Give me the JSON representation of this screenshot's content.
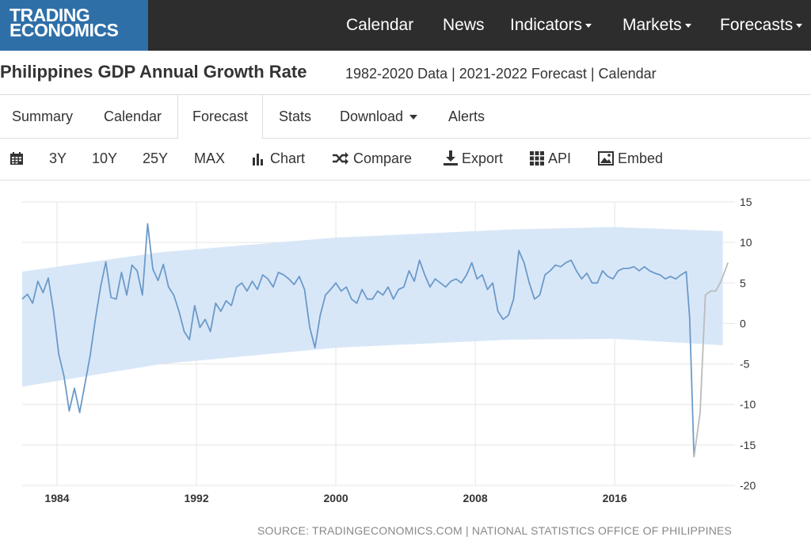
{
  "header": {
    "logo_line1": "TRADING",
    "logo_line2": "ECONOMICS",
    "nav": [
      {
        "label": "Calendar",
        "dropdown": false
      },
      {
        "label": "News",
        "dropdown": false
      },
      {
        "label": "Indicators",
        "dropdown": true
      },
      {
        "label": "Markets",
        "dropdown": true
      },
      {
        "label": "Forecasts",
        "dropdown": true
      }
    ]
  },
  "page": {
    "title": "Philippines GDP Annual Growth Rate",
    "subtitle": "1982-2020 Data | 2021-2022 Forecast | Calendar"
  },
  "tabs": [
    {
      "label": "Summary",
      "active": false,
      "dropdown": false
    },
    {
      "label": "Calendar",
      "active": false,
      "dropdown": false
    },
    {
      "label": "Forecast",
      "active": true,
      "dropdown": false
    },
    {
      "label": "Stats",
      "active": false,
      "dropdown": false
    },
    {
      "label": "Download",
      "active": false,
      "dropdown": true
    },
    {
      "label": "Alerts",
      "active": false,
      "dropdown": false
    }
  ],
  "toolbar": {
    "items": [
      {
        "label": "",
        "icon": "calendar-icon"
      },
      {
        "label": "3Y",
        "icon": ""
      },
      {
        "label": "10Y",
        "icon": ""
      },
      {
        "label": "25Y",
        "icon": ""
      },
      {
        "label": "MAX",
        "icon": ""
      },
      {
        "label": "Chart",
        "icon": "bar-chart-icon"
      },
      {
        "label": "Compare",
        "icon": "shuffle-icon"
      },
      {
        "label": "Export",
        "icon": "download-icon"
      },
      {
        "label": "API",
        "icon": "grid-icon"
      },
      {
        "label": "Embed",
        "icon": "image-icon"
      }
    ]
  },
  "source": "SOURCE: TRADINGECONOMICS.COM | NATIONAL STATISTICS OFFICE OF PHILIPPINES",
  "colors": {
    "nav_bg": "#2d2d2d",
    "logo_bg": "#2f6fa8",
    "line": "#6b9ac9",
    "forecast_line": "#bbbbbb",
    "band": "#d4e4f7"
  },
  "chart_data": {
    "type": "line",
    "x_ticks": [
      "1984",
      "1992",
      "2000",
      "2008",
      "2016"
    ],
    "y_ticks": [
      "15",
      "10",
      "5",
      "0",
      "-5",
      "-10",
      "-15",
      "-20"
    ],
    "ylim": [
      -20,
      15
    ],
    "xlim": [
      1982.0,
      2022.9
    ],
    "grid": true,
    "series": [
      {
        "kind": "actual",
        "x": [
          1982.0,
          1982.3,
          1982.6,
          1982.9,
          1983.2,
          1983.5,
          1983.8,
          1984.1,
          1984.4,
          1984.7,
          1985.0,
          1985.3,
          1985.6,
          1985.9,
          1986.2,
          1986.5,
          1986.8,
          1987.1,
          1987.4,
          1987.7,
          1988.0,
          1988.3,
          1988.6,
          1988.9,
          1989.2,
          1989.5,
          1989.8,
          1990.1,
          1990.4,
          1990.7,
          1991.0,
          1991.3,
          1991.6,
          1991.9,
          1992.2,
          1992.5,
          1992.8,
          1993.1,
          1993.4,
          1993.7,
          1994.0,
          1994.3,
          1994.6,
          1994.9,
          1995.2,
          1995.5,
          1995.8,
          1996.1,
          1996.4,
          1996.7,
          1997.0,
          1997.3,
          1997.6,
          1997.9,
          1998.2,
          1998.5,
          1998.8,
          1999.1,
          1999.4,
          1999.7,
          2000.0,
          2000.3,
          2000.6,
          2000.9,
          2001.2,
          2001.5,
          2001.8,
          2002.1,
          2002.4,
          2002.7,
          2003.0,
          2003.3,
          2003.6,
          2003.9,
          2004.2,
          2004.5,
          2004.8,
          2005.1,
          2005.4,
          2005.7,
          2006.0,
          2006.3,
          2006.6,
          2006.9,
          2007.2,
          2007.5,
          2007.8,
          2008.1,
          2008.4,
          2008.7,
          2009.0,
          2009.3,
          2009.6,
          2009.9,
          2010.2,
          2010.5,
          2010.8,
          2011.1,
          2011.4,
          2011.7,
          2012.0,
          2012.3,
          2012.6,
          2012.9,
          2013.2,
          2013.5,
          2013.8,
          2014.1,
          2014.4,
          2014.7,
          2015.0,
          2015.3,
          2015.6,
          2015.9,
          2016.2,
          2016.5,
          2016.8,
          2017.1,
          2017.4,
          2017.7,
          2018.0,
          2018.3,
          2018.6,
          2018.9,
          2019.2,
          2019.5,
          2019.8,
          2020.1,
          2020.3,
          2020.55
        ],
        "y": [
          3.0,
          3.6,
          2.5,
          5.2,
          3.8,
          5.6,
          1.5,
          -3.8,
          -6.5,
          -10.8,
          -8.0,
          -11.0,
          -7.5,
          -4.0,
          0.5,
          4.5,
          7.6,
          3.2,
          3.0,
          6.3,
          3.5,
          7.2,
          6.5,
          3.5,
          12.3,
          6.7,
          5.3,
          7.3,
          4.5,
          3.5,
          1.5,
          -1.0,
          -2.0,
          2.2,
          -0.5,
          0.5,
          -1.0,
          2.5,
          1.5,
          2.8,
          2.2,
          4.5,
          5.0,
          4.0,
          5.2,
          4.2,
          6.0,
          5.5,
          4.5,
          6.3,
          6.0,
          5.5,
          4.8,
          5.8,
          4.2,
          -0.5,
          -3.0,
          1.0,
          3.5,
          4.2,
          5.0,
          4.0,
          4.5,
          3.0,
          2.5,
          4.2,
          3.0,
          3.0,
          4.0,
          3.5,
          4.5,
          3.0,
          4.2,
          4.5,
          6.5,
          5.2,
          7.8,
          6.0,
          4.5,
          5.5,
          5.0,
          4.5,
          5.2,
          5.5,
          5.0,
          6.0,
          7.5,
          5.5,
          6.0,
          4.2,
          5.0,
          1.5,
          0.5,
          1.0,
          3.0,
          9.0,
          7.5,
          5.0,
          3.0,
          3.5,
          6.0,
          6.5,
          7.2,
          7.0,
          7.5,
          7.8,
          6.5,
          5.5,
          6.2,
          5.0,
          5.0,
          6.5,
          5.8,
          5.5,
          6.5,
          6.8,
          6.8,
          7.0,
          6.5,
          7.0,
          6.5,
          6.2,
          6.0,
          5.5,
          5.8,
          5.5,
          6.0,
          6.4,
          0.7,
          -16.5
        ],
        "tick_labels_x": [
          "1984",
          "1992",
          "2000",
          "2008",
          "2016"
        ]
      },
      {
        "kind": "forecast",
        "x": [
          2020.55,
          2020.9,
          2021.2,
          2021.5,
          2021.8,
          2022.1,
          2022.5
        ],
        "y": [
          -16.5,
          -11.0,
          3.5,
          4.0,
          4.0,
          5.2,
          7.5
        ]
      }
    ],
    "band": {
      "x": [
        1982.0,
        1990.0,
        2000.0,
        2010.0,
        2016.0,
        2022.2
      ],
      "upper": [
        6.4,
        8.8,
        10.6,
        11.6,
        11.9,
        11.4
      ],
      "lower": [
        -7.8,
        -5.0,
        -3.0,
        -2.0,
        -1.9,
        -2.7
      ]
    }
  }
}
